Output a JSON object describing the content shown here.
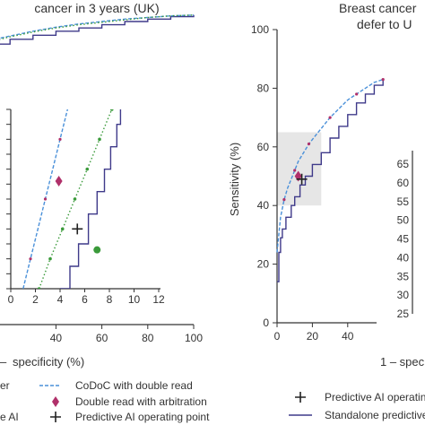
{
  "chart_data": [
    {
      "type": "line",
      "title": "cancer in 3 years (UK)",
      "xlabel": "specificity (%)",
      "xlabel_prefix": "–",
      "xlim": [
        0,
        100
      ],
      "xticks": [
        "40",
        "60",
        "80",
        "100"
      ],
      "series": [
        {
          "name": "Standalone predictive AI",
          "color": "#3f3a8a",
          "style": "step",
          "x": [
            0,
            10,
            20,
            30,
            40,
            50,
            60,
            70,
            80,
            90,
            100
          ],
          "y": [
            55,
            62,
            68,
            73,
            78,
            82,
            86,
            90,
            93,
            96,
            98
          ]
        },
        {
          "name": "CoDoC with double read",
          "color": "#4a90d9",
          "style": "dashed",
          "x": [
            0,
            10,
            20,
            30,
            40,
            50,
            60,
            70,
            80,
            90,
            100
          ],
          "y": [
            58,
            66,
            72,
            78,
            83,
            87,
            90,
            93,
            95,
            97,
            98
          ]
        },
        {
          "name": "",
          "color": "#3a9a3a",
          "style": "dotted",
          "x": [
            0,
            10,
            20,
            30,
            40,
            50,
            60,
            70,
            80,
            90,
            100
          ],
          "y": [
            57,
            64,
            71,
            77,
            82,
            86,
            89,
            92,
            95,
            97,
            98
          ]
        }
      ],
      "inset": {
        "xlim": [
          0,
          12
        ],
        "ylim": [
          0,
          12
        ],
        "xticks": [
          "0",
          "2",
          "4",
          "6",
          "8",
          "10",
          "12"
        ],
        "series": [
          {
            "name": "CoDoC with double read",
            "color": "#4a90d9",
            "style": "dashed",
            "x": [
              1.0,
              1.6,
              2.2,
              2.8,
              3.4,
              4.0,
              4.6,
              5.2
            ],
            "y": [
              0,
              2,
              4,
              6,
              8,
              10,
              12,
              13
            ]
          },
          {
            "name": "",
            "color": "#3a9a3a",
            "style": "dotted",
            "x": [
              2.3,
              3.2,
              4.2,
              5.2,
              6.2,
              7.2,
              8.2,
              8.8
            ],
            "y": [
              0,
              2,
              4,
              6,
              8,
              10,
              12,
              13
            ]
          },
          {
            "name": "Standalone predictive AI",
            "color": "#3f3a8a",
            "style": "step",
            "x": [
              4.0,
              4.8,
              5.5,
              6.3,
              7.0,
              7.6,
              8.1,
              8.6,
              8.9
            ],
            "y": [
              0,
              1.5,
              3,
              5,
              6.5,
              8,
              9.5,
              11,
              12.3
            ]
          }
        ],
        "points": [
          {
            "name": "Double read with arbitration",
            "marker": "diamond",
            "color": "#b0306a",
            "x": 3.9,
            "y": 7.2
          },
          {
            "name": "Predictive AI operating point",
            "marker": "plus",
            "color": "#222222",
            "x": 5.4,
            "y": 4.0
          },
          {
            "name": "",
            "marker": "circle",
            "color": "#3a9a3a",
            "x": 7.0,
            "y": 2.6
          }
        ]
      }
    },
    {
      "type": "line",
      "title_lines": [
        "Breast cancer",
        "defer to U"
      ],
      "xlabel": "1 – spec",
      "ylabel": "Sensitivity (%)",
      "xlim": [
        0,
        100
      ],
      "ylim": [
        0,
        100
      ],
      "xticks": [
        "0",
        "20",
        "40"
      ],
      "yticks": [
        "0",
        "20",
        "40",
        "60",
        "80",
        "100"
      ],
      "series": [
        {
          "name": "Standalone predictive AI",
          "color": "#3f3a8a",
          "style": "step",
          "x": [
            0,
            1,
            2,
            3,
            5,
            8,
            10,
            13,
            16,
            20,
            25,
            30,
            35,
            40,
            45,
            50,
            55,
            60
          ],
          "y": [
            14,
            24,
            29,
            32,
            36,
            40,
            43,
            47,
            50,
            54,
            58,
            63,
            67,
            71,
            75,
            78,
            81,
            83
          ]
        },
        {
          "name": "CoDoC with double read",
          "color": "#4a90d9",
          "style": "dashed",
          "x": [
            0,
            2,
            4,
            6,
            8,
            10,
            12,
            15,
            18,
            22,
            26,
            30,
            35,
            40,
            45,
            50,
            55,
            60
          ],
          "y": [
            24,
            36,
            42,
            46,
            49,
            52,
            55,
            58,
            61,
            64,
            67,
            70,
            73,
            76,
            78,
            80,
            82,
            83
          ]
        }
      ],
      "points": [
        {
          "name": "Double read with arbitration",
          "marker": "diamond",
          "color": "#b0306a",
          "x": 12,
          "y": 50
        },
        {
          "name": "Predictive AI operating point",
          "marker": "plus",
          "color": "#222222",
          "x": 14,
          "y": 49
        }
      ],
      "zoom_region": {
        "x": [
          0,
          25
        ],
        "y": [
          40,
          65
        ]
      },
      "inset_yticks": [
        "25",
        "30",
        "35",
        "40",
        "45",
        "50",
        "55",
        "60",
        "65"
      ]
    }
  ],
  "legend_left": {
    "items": [
      {
        "marker": "line",
        "color": "#3f3a8a",
        "label": "er"
      },
      {
        "marker": "dashed",
        "color": "#4a90d9",
        "label": "CoDoC with double read"
      },
      {
        "marker": "diamond",
        "color": "#b0306a",
        "label": "Double read with arbitration"
      },
      {
        "marker": "dot",
        "color": "#3a9a3a",
        "label": "e AI"
      },
      {
        "marker": "plus",
        "color": "#222222",
        "label": "Predictive AI operating point"
      }
    ]
  },
  "legend_right": {
    "items": [
      {
        "marker": "plus",
        "color": "#222222",
        "label": "Predictive AI operatin"
      },
      {
        "marker": "line",
        "color": "#3f3a8a",
        "label": "Standalone predictive"
      }
    ]
  }
}
